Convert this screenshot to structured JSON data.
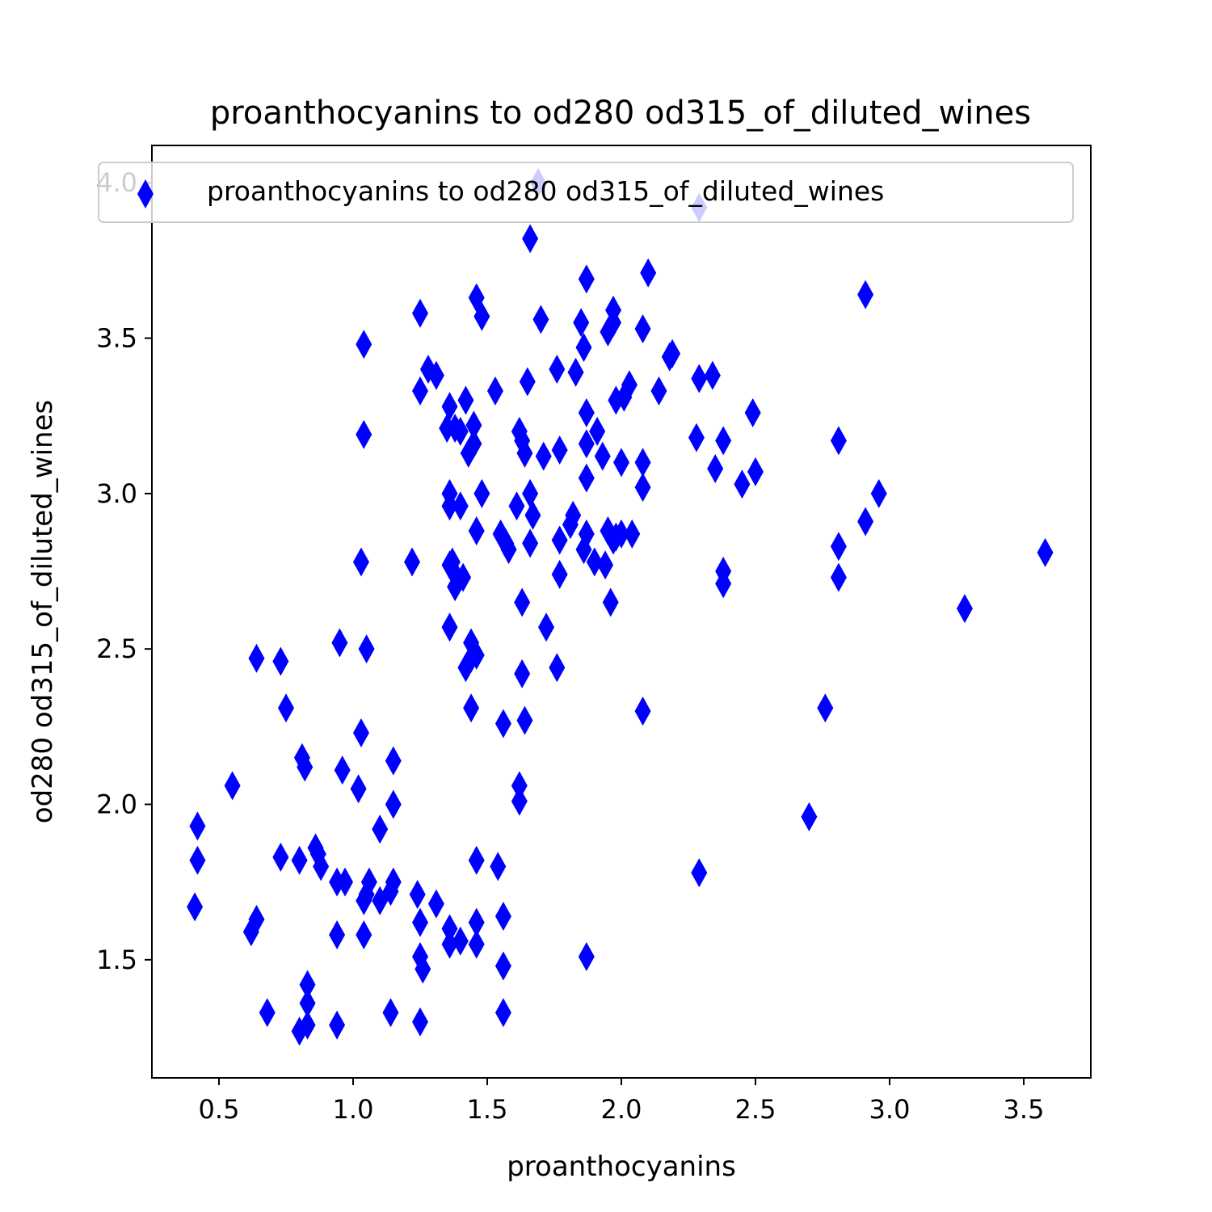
{
  "chart_data": {
    "type": "scatter",
    "title": "proanthocyanins to od280 od315_of_diluted_wines",
    "xlabel": "proanthocyanins",
    "ylabel": "od280 od315_of_diluted_wines",
    "xlim": [
      0.25,
      3.75
    ],
    "ylim": [
      1.12,
      4.12
    ],
    "xticks": [
      "0.5",
      "1.0",
      "1.5",
      "2.0",
      "2.5",
      "3.0",
      "3.5"
    ],
    "yticks": [
      "1.5",
      "2.0",
      "2.5",
      "3.0",
      "3.5",
      "4.0"
    ],
    "grid": false,
    "legend_position": "top",
    "marker": "thin-diamond",
    "series": [
      {
        "name": "proanthocyanins to od280 od315_of_diluted_wines",
        "color": "#0000ff",
        "points": [
          [
            0.41,
            1.67
          ],
          [
            0.42,
            1.82
          ],
          [
            0.42,
            1.93
          ],
          [
            0.55,
            2.06
          ],
          [
            0.62,
            1.59
          ],
          [
            0.64,
            1.63
          ],
          [
            0.64,
            2.47
          ],
          [
            0.68,
            1.33
          ],
          [
            0.73,
            1.83
          ],
          [
            0.73,
            2.46
          ],
          [
            0.75,
            2.31
          ],
          [
            0.8,
            1.27
          ],
          [
            0.8,
            1.82
          ],
          [
            0.81,
            2.15
          ],
          [
            0.82,
            2.12
          ],
          [
            0.83,
            1.29
          ],
          [
            0.83,
            1.36
          ],
          [
            0.83,
            1.42
          ],
          [
            0.86,
            1.86
          ],
          [
            0.87,
            1.84
          ],
          [
            0.88,
            1.8
          ],
          [
            0.94,
            1.29
          ],
          [
            0.94,
            1.58
          ],
          [
            0.94,
            1.75
          ],
          [
            0.95,
            2.52
          ],
          [
            0.96,
            2.11
          ],
          [
            0.97,
            1.75
          ],
          [
            1.02,
            2.05
          ],
          [
            1.03,
            2.23
          ],
          [
            1.03,
            2.78
          ],
          [
            1.04,
            1.58
          ],
          [
            1.04,
            1.69
          ],
          [
            1.04,
            3.19
          ],
          [
            1.04,
            3.48
          ],
          [
            1.05,
            1.71
          ],
          [
            1.05,
            2.5
          ],
          [
            1.06,
            1.75
          ],
          [
            1.1,
            1.69
          ],
          [
            1.1,
            1.92
          ],
          [
            1.14,
            1.33
          ],
          [
            1.14,
            1.72
          ],
          [
            1.15,
            1.75
          ],
          [
            1.15,
            2.0
          ],
          [
            1.15,
            2.14
          ],
          [
            1.22,
            2.78
          ],
          [
            1.24,
            1.71
          ],
          [
            1.25,
            1.3
          ],
          [
            1.25,
            1.51
          ],
          [
            1.25,
            1.62
          ],
          [
            1.25,
            3.33
          ],
          [
            1.25,
            3.58
          ],
          [
            1.26,
            1.47
          ],
          [
            1.28,
            3.4
          ],
          [
            1.31,
            1.68
          ],
          [
            1.31,
            3.38
          ],
          [
            1.35,
            3.21
          ],
          [
            1.36,
            1.55
          ],
          [
            1.36,
            1.6
          ],
          [
            1.36,
            2.57
          ],
          [
            1.36,
            2.77
          ],
          [
            1.36,
            2.96
          ],
          [
            1.36,
            3.0
          ],
          [
            1.36,
            3.28
          ],
          [
            1.37,
            2.78
          ],
          [
            1.38,
            2.7
          ],
          [
            1.38,
            2.74
          ],
          [
            1.38,
            3.21
          ],
          [
            1.4,
            1.56
          ],
          [
            1.4,
            2.96
          ],
          [
            1.4,
            3.2
          ],
          [
            1.41,
            2.73
          ],
          [
            1.42,
            2.44
          ],
          [
            1.42,
            3.3
          ],
          [
            1.43,
            3.13
          ],
          [
            1.44,
            2.31
          ],
          [
            1.44,
            2.47
          ],
          [
            1.44,
            2.52
          ],
          [
            1.45,
            3.16
          ],
          [
            1.45,
            3.22
          ],
          [
            1.46,
            1.55
          ],
          [
            1.46,
            1.62
          ],
          [
            1.46,
            1.82
          ],
          [
            1.46,
            2.48
          ],
          [
            1.46,
            2.88
          ],
          [
            1.46,
            3.63
          ],
          [
            1.48,
            3.0
          ],
          [
            1.48,
            3.57
          ],
          [
            1.53,
            3.33
          ],
          [
            1.54,
            1.8
          ],
          [
            1.55,
            2.87
          ],
          [
            1.56,
            1.33
          ],
          [
            1.56,
            1.48
          ],
          [
            1.56,
            1.64
          ],
          [
            1.56,
            2.26
          ],
          [
            1.57,
            2.84
          ],
          [
            1.58,
            2.82
          ],
          [
            1.61,
            2.96
          ],
          [
            1.62,
            2.01
          ],
          [
            1.62,
            2.06
          ],
          [
            1.62,
            3.2
          ],
          [
            1.63,
            2.42
          ],
          [
            1.63,
            2.65
          ],
          [
            1.63,
            3.17
          ],
          [
            1.64,
            2.27
          ],
          [
            1.64,
            3.13
          ],
          [
            1.65,
            3.36
          ],
          [
            1.66,
            2.84
          ],
          [
            1.66,
            3.0
          ],
          [
            1.66,
            3.82
          ],
          [
            1.67,
            2.93
          ],
          [
            1.69,
            4.0
          ],
          [
            1.7,
            3.56
          ],
          [
            1.71,
            3.12
          ],
          [
            1.72,
            2.57
          ],
          [
            1.76,
            2.44
          ],
          [
            1.76,
            3.4
          ],
          [
            1.77,
            2.74
          ],
          [
            1.77,
            2.85
          ],
          [
            1.77,
            3.14
          ],
          [
            1.81,
            2.9
          ],
          [
            1.82,
            2.93
          ],
          [
            1.83,
            3.39
          ],
          [
            1.85,
            3.55
          ],
          [
            1.86,
            2.82
          ],
          [
            1.86,
            3.47
          ],
          [
            1.87,
            1.51
          ],
          [
            1.87,
            2.87
          ],
          [
            1.87,
            3.05
          ],
          [
            1.87,
            3.16
          ],
          [
            1.87,
            3.26
          ],
          [
            1.87,
            3.69
          ],
          [
            1.9,
            2.78
          ],
          [
            1.91,
            3.2
          ],
          [
            1.93,
            3.12
          ],
          [
            1.94,
            2.77
          ],
          [
            1.95,
            2.88
          ],
          [
            1.95,
            3.52
          ],
          [
            1.96,
            2.65
          ],
          [
            1.97,
            2.85
          ],
          [
            1.97,
            3.55
          ],
          [
            1.97,
            3.59
          ],
          [
            1.98,
            2.86
          ],
          [
            1.98,
            3.3
          ],
          [
            2.0,
            2.87
          ],
          [
            2.0,
            3.1
          ],
          [
            2.01,
            3.31
          ],
          [
            2.03,
            3.35
          ],
          [
            2.04,
            2.87
          ],
          [
            2.08,
            2.3
          ],
          [
            2.08,
            3.02
          ],
          [
            2.08,
            3.1
          ],
          [
            2.08,
            3.53
          ],
          [
            2.1,
            3.71
          ],
          [
            2.14,
            3.33
          ],
          [
            2.18,
            3.44
          ],
          [
            2.19,
            3.45
          ],
          [
            2.28,
            3.18
          ],
          [
            2.29,
            1.78
          ],
          [
            2.29,
            3.37
          ],
          [
            2.29,
            3.92
          ],
          [
            2.34,
            3.38
          ],
          [
            2.35,
            3.08
          ],
          [
            2.38,
            2.71
          ],
          [
            2.38,
            2.75
          ],
          [
            2.38,
            3.17
          ],
          [
            2.45,
            3.03
          ],
          [
            2.49,
            3.26
          ],
          [
            2.5,
            3.07
          ],
          [
            2.7,
            1.96
          ],
          [
            2.76,
            2.31
          ],
          [
            2.81,
            2.73
          ],
          [
            2.81,
            2.83
          ],
          [
            2.81,
            3.17
          ],
          [
            2.91,
            2.91
          ],
          [
            2.91,
            3.64
          ],
          [
            2.96,
            3.0
          ],
          [
            3.28,
            2.63
          ],
          [
            3.58,
            2.81
          ]
        ]
      }
    ]
  }
}
